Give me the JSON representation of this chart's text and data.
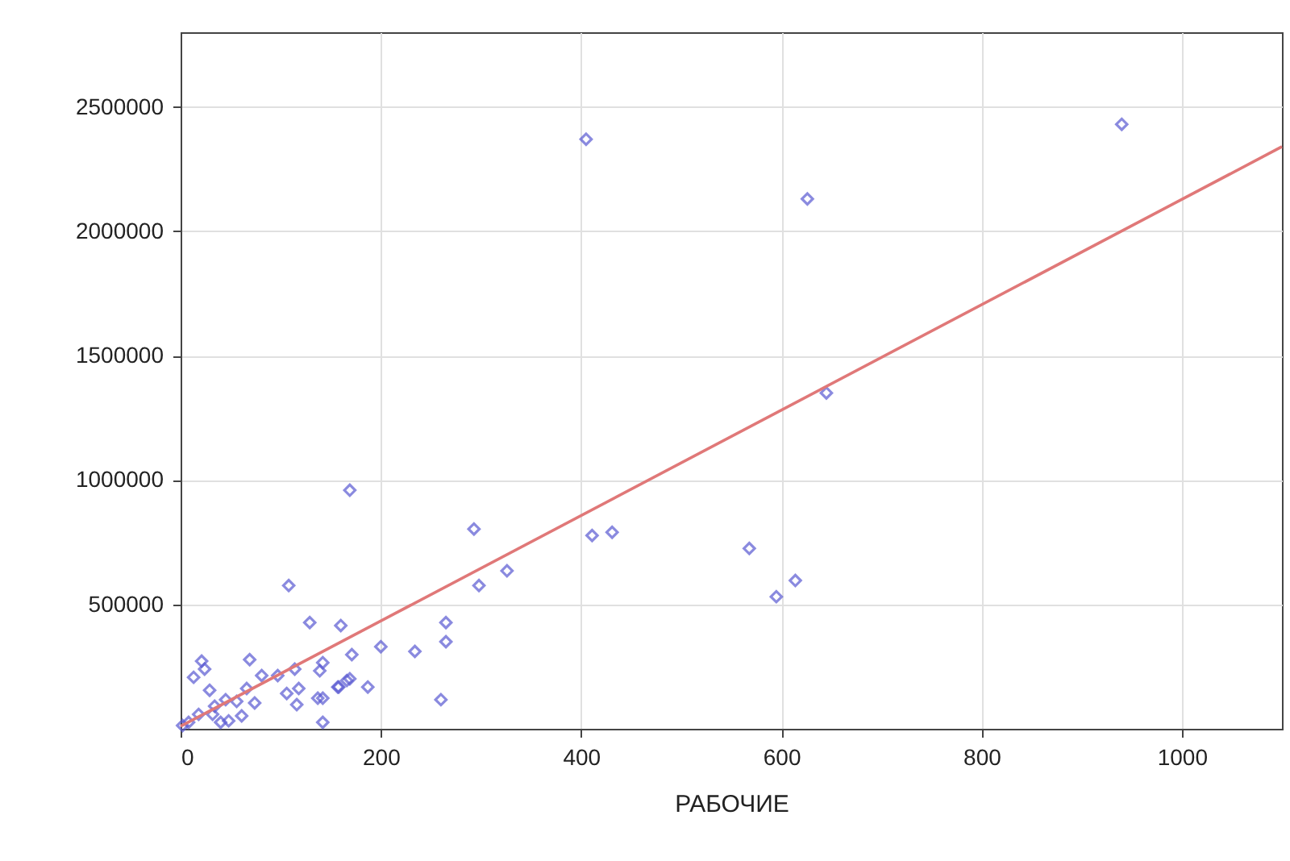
{
  "chart_data": {
    "type": "scatter",
    "xlabel": "РАБОЧИЕ",
    "xlim": [
      0,
      1100
    ],
    "xticks": [
      0,
      200,
      400,
      600,
      800,
      1000
    ],
    "ylim": [
      0,
      2800000
    ],
    "yticks": [
      500000,
      1000000,
      1500000,
      2000000,
      2500000
    ],
    "grid": true,
    "marker": "diamond",
    "series": [
      {
        "color": "#5a5ad2",
        "x": [
          405,
          626,
          940,
          645,
          568,
          595,
          614,
          169,
          293,
          411,
          431,
          298,
          326,
          160,
          265,
          265,
          200,
          234,
          171,
          142,
          187,
          166,
          157,
          260,
          142,
          142,
          108,
          129,
          69,
          21,
          13,
          24,
          81,
          97,
          114,
          106,
          118,
          116,
          139,
          137,
          169,
          158,
          29,
          45,
          34,
          56,
          74,
          66,
          61,
          48,
          32,
          18,
          8,
          2,
          40
        ],
        "values": [
          2370000,
          2130000,
          2430000,
          1350000,
          725000,
          531000,
          596000,
          959000,
          803000,
          777000,
          790000,
          576000,
          635000,
          415000,
          427000,
          350000,
          330000,
          311000,
          298000,
          266000,
          168000,
          194000,
          168000,
          117000,
          123000,
          26000,
          576000,
          427000,
          278000,
          272000,
          207000,
          240000,
          214000,
          214000,
          240000,
          142000,
          162000,
          97000,
          233000,
          123000,
          201000,
          168000,
          155000,
          117000,
          91000,
          110000,
          104000,
          162000,
          52000,
          32000,
          58000,
          58000,
          26000,
          13000,
          26000
        ]
      },
      {
        "type": "line",
        "marker": "none",
        "color": "#e07878",
        "x": [
          0,
          1100
        ],
        "values": [
          10000,
          2340000
        ]
      }
    ]
  }
}
